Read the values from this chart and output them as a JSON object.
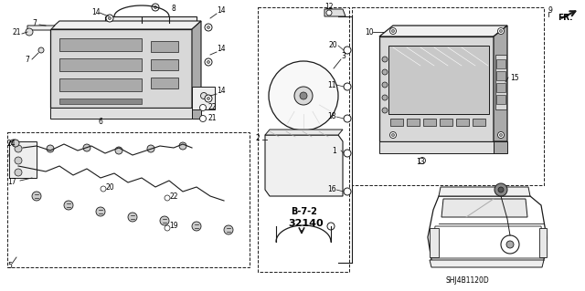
{
  "background_color": "#ffffff",
  "diagram_code": "SHJ4B1120D",
  "page_ref": "B-7-2\n32140",
  "fr_label": "FR.",
  "line_color": "#1a1a1a",
  "light_gray": "#d8d8d8",
  "mid_gray": "#aaaaaa",
  "dark_gray": "#555555"
}
